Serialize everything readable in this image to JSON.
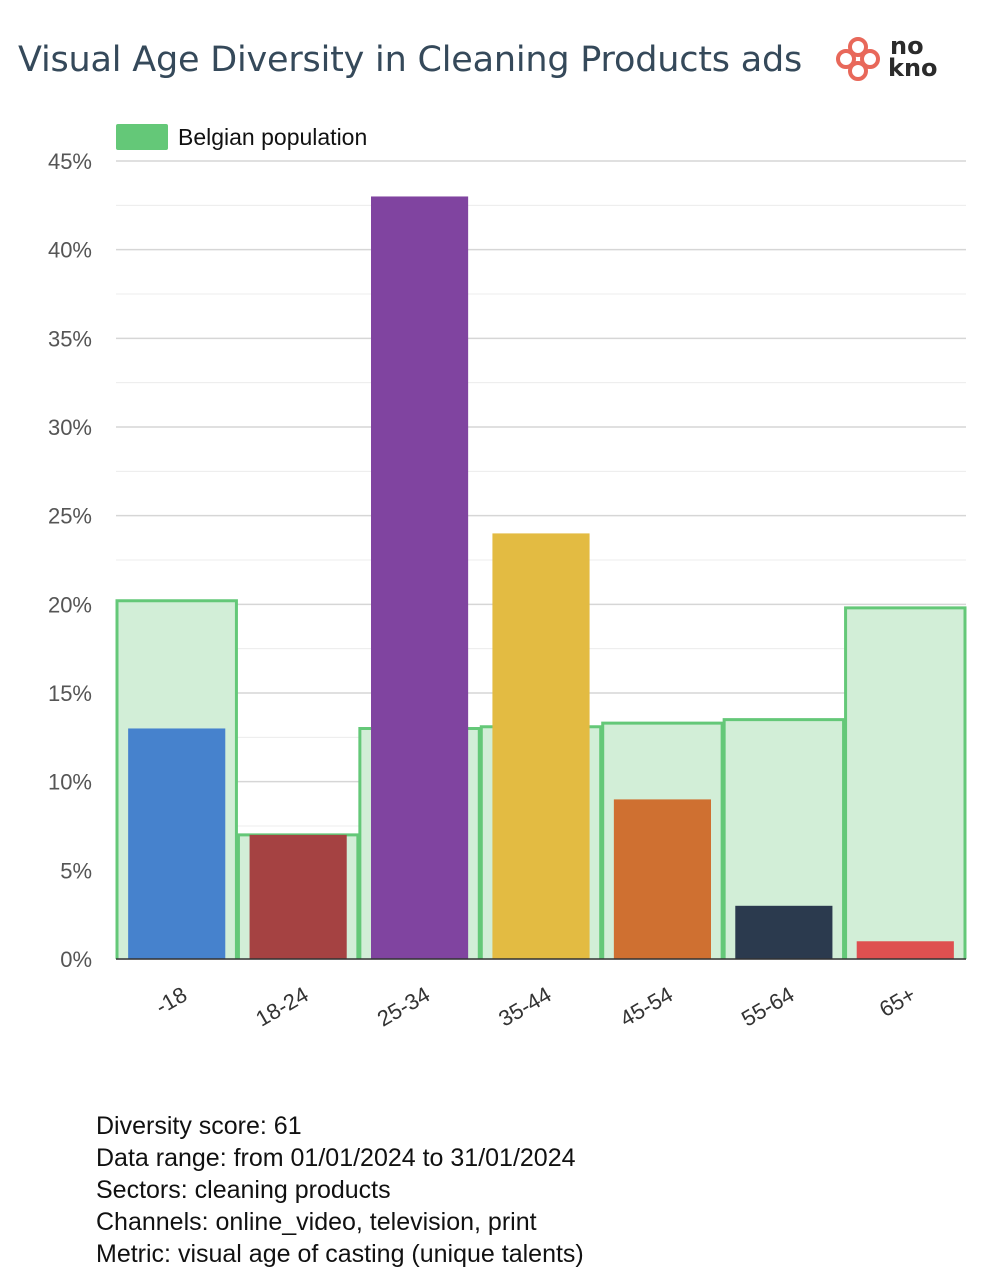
{
  "title": "Visual Age Diversity in Cleaning Products ads",
  "logo": {
    "text_top": "no",
    "text_bottom": "kno",
    "color": "#e8685a"
  },
  "chart_data": {
    "type": "bar",
    "categories": [
      "-18",
      "18-24",
      "25-34",
      "35-44",
      "45-54",
      "55-64",
      "65+"
    ],
    "values": [
      13,
      7,
      43,
      24,
      9,
      3,
      1
    ],
    "colors": [
      "#4682cd",
      "#a54242",
      "#8044a0",
      "#e3bb42",
      "#cf7031",
      "#2b3a4e",
      "#de5050"
    ],
    "reference": {
      "name": "Belgian population",
      "values": [
        20.2,
        7.0,
        13.0,
        13.1,
        13.3,
        13.5,
        19.8
      ],
      "line_color": "#64c878",
      "fill_color": "#d2eed7"
    },
    "ylim": [
      0,
      45
    ],
    "y_ticks": [
      "0%",
      "5%",
      "10%",
      "15%",
      "20%",
      "25%",
      "30%",
      "35%",
      "40%",
      "45%"
    ],
    "grid": true,
    "legend": "top-left"
  },
  "footer": {
    "lines": [
      "Diversity score: 61",
      "Data range: from 01/01/2024 to 31/01/2024",
      "Sectors: cleaning products",
      "Channels: online_video, television, print",
      "Metric: visual age of casting (unique talents)"
    ]
  }
}
